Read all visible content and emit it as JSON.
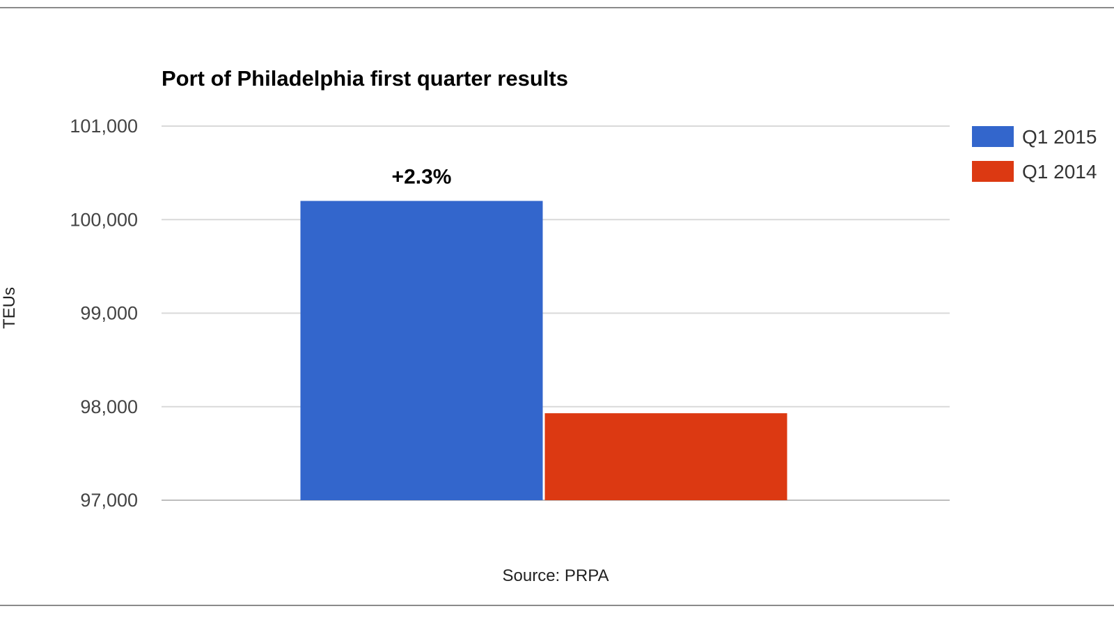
{
  "chart_data": {
    "type": "bar",
    "title": "Port of Philadelphia first quarter results",
    "ylabel": "TEUs",
    "xlabel": "Source: PRPA",
    "ylim": [
      97000,
      101000
    ],
    "yticks": [
      101000,
      100000,
      99000,
      98000,
      97000
    ],
    "ytick_labels": [
      "101,000",
      "100,000",
      "99,000",
      "98,000",
      "97,000"
    ],
    "categories": [
      ""
    ],
    "series": [
      {
        "name": "Q1 2015",
        "values": [
          100200
        ],
        "color": "#3366cc"
      },
      {
        "name": "Q1 2014",
        "values": [
          97930
        ],
        "color": "#dc3912"
      }
    ],
    "annotations": [
      {
        "text": "+2.3%",
        "series": "Q1 2015"
      }
    ],
    "legend_position": "right",
    "grid": true
  }
}
